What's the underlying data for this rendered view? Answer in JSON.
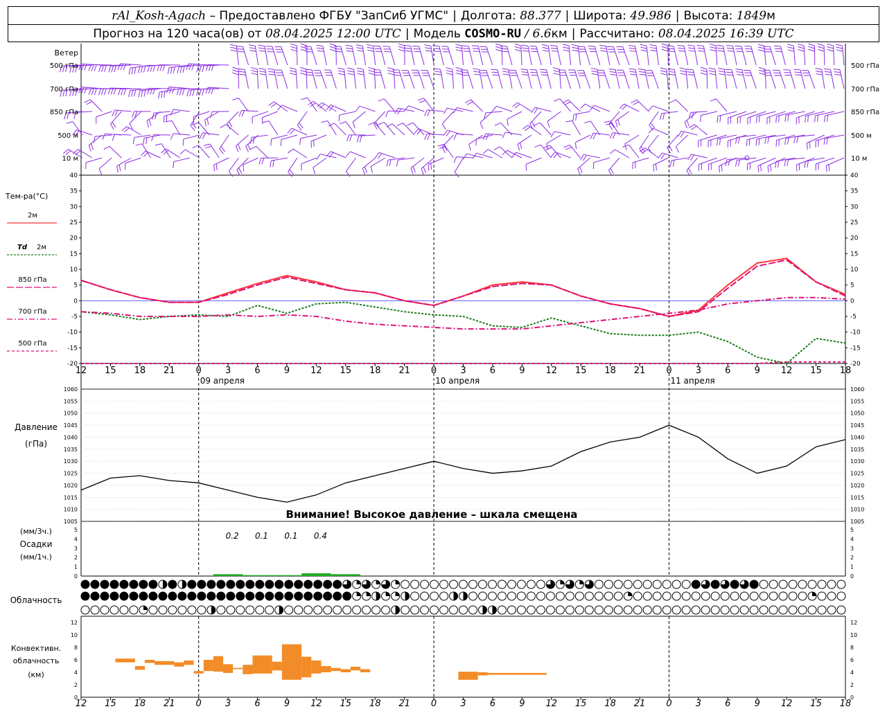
{
  "header": {
    "station": "rAl_Kosh-Agach",
    "provided_by": "– Предоставлено ФГБУ \"ЗапСиб УГМС\"",
    "lon_label": "Долгота:",
    "lon_value": "88.377",
    "lat_label": "Широта:",
    "lat_value": "49.986",
    "alt_label": "Высота:",
    "alt_value": "1849",
    "alt_unit": "м",
    "forecast_prefix": "Прогноз на 120 часа(ов) от",
    "forecast_time": "08.04.2025 12:00 UTC",
    "model_label": "Модель",
    "model_name": "COSMO-RU",
    "model_res": "/ 6.6",
    "model_res_unit": "км",
    "computed_label": "Рассчитано:",
    "computed_time": "08.04.2025 16:39 UTC"
  },
  "wind": {
    "title": "Ветер",
    "levels": [
      "500 гПа",
      "700 гПа",
      "850 гПа",
      "500  м",
      "10  м"
    ]
  },
  "temperature": {
    "title": "Тем-ра(°C)",
    "legend": [
      {
        "label": "2м",
        "italic": "",
        "color": "#ff3333",
        "dash": ""
      },
      {
        "label": "2м",
        "italic": "Td",
        "color": "#1a7a1a",
        "dash": "3,2"
      },
      {
        "label": "850 гПа",
        "italic": "",
        "color": "#dd1177",
        "dash": "10,3"
      },
      {
        "label": "700 гПа",
        "italic": "",
        "color": "#dd1177",
        "dash": "8,3,2,3"
      },
      {
        "label": "500 гПа",
        "italic": "",
        "color": "#dd1177",
        "dash": "4,3"
      }
    ],
    "axis": [
      40,
      35,
      30,
      25,
      20,
      15,
      10,
      5,
      0,
      -5,
      -10,
      -15,
      -20
    ],
    "x_hours": [
      "12",
      "15",
      "18",
      "21",
      "0",
      "3",
      "6",
      "9",
      "12",
      "15",
      "18",
      "21",
      "0",
      "3",
      "6",
      "9",
      "12",
      "15",
      "18",
      "21",
      "0",
      "3",
      "6",
      "9",
      "12",
      "15",
      "18"
    ],
    "days": [
      "09 апреля",
      "10 апреля",
      "11 апреля"
    ]
  },
  "pressure": {
    "title": "Давление",
    "unit": "(гПа)",
    "axis": [
      1060,
      1055,
      1050,
      1045,
      1040,
      1035,
      1030,
      1025,
      1020,
      1015,
      1010,
      1005
    ],
    "warning": "Внимание! Высокое давление – шкала смещена"
  },
  "precip": {
    "unit_top": "(мм/3ч.)",
    "title": "Осадки",
    "unit_bottom": "(мм/1ч.)",
    "axis": [
      5,
      4,
      3,
      2,
      1,
      0
    ],
    "totals": [
      "0.2",
      "0.1",
      "0.1",
      "0.4"
    ]
  },
  "cloud": {
    "title": "Облачность"
  },
  "convective": {
    "title_l1": "Конвективн.",
    "title_l2": "облачность",
    "title_l3": "(км)",
    "axis": [
      12,
      10,
      8,
      6,
      4,
      2,
      0
    ]
  },
  "colors": {
    "wind_barb": "#8a2be2",
    "t2m": "#ff3333",
    "td2m": "#1a7a1a",
    "t_levels": "#dd1177",
    "precip": "#22aa22",
    "convective": "#f28c28",
    "zero_line": "#4444ff"
  },
  "chart_data": [
    {
      "type": "line",
      "title": "Тем-ра(°C)",
      "x": [
        0,
        3,
        6,
        9,
        12,
        15,
        18,
        21,
        24,
        27,
        30,
        33,
        36,
        39,
        42,
        45,
        48,
        51,
        54,
        57,
        60,
        63,
        66,
        69,
        72,
        75,
        78
      ],
      "ylim": [
        -20,
        40
      ],
      "series": [
        {
          "name": "2м",
          "values": [
            6.5,
            3.5,
            1,
            -0.5,
            -0.5,
            2.5,
            5.5,
            8,
            6,
            3.5,
            2.5,
            0,
            -1.5,
            1.5,
            5,
            6,
            5,
            1.5,
            -1,
            -2.5,
            -5,
            -3,
            5,
            12,
            13.5,
            6,
            2
          ]
        },
        {
          "name": "Td 2м",
          "values": [
            -3.5,
            -4.5,
            -6,
            -5,
            -4.5,
            -5,
            -1.5,
            -4,
            -1,
            -0.5,
            -2,
            -3.5,
            -4.5,
            -5,
            -8,
            -8.5,
            -5.5,
            -8,
            -10.5,
            -11,
            -11,
            -10,
            -13,
            -18,
            -20,
            -12,
            -13.5
          ]
        },
        {
          "name": "850 гПа",
          "values": [
            6.5,
            3.5,
            1,
            -0.5,
            -0.5,
            2,
            5,
            7.5,
            5.5,
            3.5,
            2.5,
            0,
            -1.5,
            1.5,
            4.5,
            5.5,
            5,
            1.5,
            -1,
            -2.5,
            -5,
            -3.5,
            4,
            11,
            13,
            6,
            1.5
          ]
        },
        {
          "name": "700 гПа",
          "values": [
            -3.5,
            -4,
            -5,
            -5,
            -5,
            -4.5,
            -5,
            -4.5,
            -5,
            -6.5,
            -7.5,
            -8,
            -8.5,
            -9,
            -9,
            -9,
            -8,
            -7,
            -6,
            -5,
            -4,
            -3,
            -1,
            0,
            1,
            1,
            0.5
          ]
        },
        {
          "name": "500 гПа",
          "values": [
            -20,
            -20,
            -20,
            -20,
            -20,
            -20,
            -20,
            -20,
            -20,
            -20,
            -20,
            -20,
            -20,
            -20,
            -20,
            -20,
            -20,
            -20,
            -20,
            -20,
            -20,
            -20,
            -20,
            -20,
            -19.5,
            -19.5,
            -19.5
          ]
        }
      ]
    },
    {
      "type": "line",
      "title": "Давление",
      "x": [
        0,
        3,
        6,
        9,
        12,
        15,
        18,
        21,
        24,
        27,
        30,
        33,
        36,
        39,
        42,
        45,
        48,
        51,
        54,
        57,
        60,
        63,
        66,
        69,
        72,
        75,
        78
      ],
      "ylim": [
        1005,
        1060
      ],
      "series": [
        {
          "name": "",
          "values": [
            1018,
            1023,
            1024,
            1022,
            1021,
            1018,
            1015,
            1013,
            1016,
            1021,
            1024,
            1027,
            1030,
            1027,
            1025,
            1026,
            1028,
            1034,
            1038,
            1040,
            1045,
            1040,
            1031,
            1025,
            1028,
            1036,
            1039
          ]
        }
      ]
    },
    {
      "type": "bar",
      "title": "Осадки",
      "ylim": [
        0,
        5
      ],
      "x": [
        15,
        18,
        21,
        24,
        27
      ],
      "values": [
        0.2,
        0.1,
        0.1,
        0.3,
        0.2
      ]
    },
    {
      "type": "bar",
      "title": "Конвективн. облачность",
      "ylim": [
        0,
        13
      ],
      "units": "км",
      "segments": [
        {
          "x0": 3.5,
          "x1": 5.5,
          "bottom": 5.6,
          "top": 6.2
        },
        {
          "x0": 5.5,
          "x1": 6.5,
          "bottom": 4.4,
          "top": 5.0
        },
        {
          "x0": 6.5,
          "x1": 7.5,
          "bottom": 5.5,
          "top": 6.0
        },
        {
          "x0": 7.5,
          "x1": 9.5,
          "bottom": 5.2,
          "top": 5.8
        },
        {
          "x0": 9.5,
          "x1": 10.5,
          "bottom": 4.9,
          "top": 5.6
        },
        {
          "x0": 10.5,
          "x1": 11.5,
          "bottom": 5.2,
          "top": 5.9
        },
        {
          "x0": 11.5,
          "x1": 12.5,
          "bottom": 3.8,
          "top": 4.2
        },
        {
          "x0": 12.5,
          "x1": 13.5,
          "bottom": 4.2,
          "top": 6.0
        },
        {
          "x0": 13.5,
          "x1": 14.5,
          "bottom": 4.1,
          "top": 6.6
        },
        {
          "x0": 14.5,
          "x1": 15.5,
          "bottom": 3.9,
          "top": 5.3
        },
        {
          "x0": 15.5,
          "x1": 16.5,
          "bottom": 4.5,
          "top": 4.7
        },
        {
          "x0": 16.5,
          "x1": 17.5,
          "bottom": 3.7,
          "top": 5.2
        },
        {
          "x0": 17.5,
          "x1": 19.5,
          "bottom": 3.8,
          "top": 6.7
        },
        {
          "x0": 19.5,
          "x1": 20.5,
          "bottom": 4.3,
          "top": 5.7
        },
        {
          "x0": 20.5,
          "x1": 22.5,
          "bottom": 2.8,
          "top": 8.5
        },
        {
          "x0": 22.5,
          "x1": 23.5,
          "bottom": 3.2,
          "top": 6.5
        },
        {
          "x0": 23.5,
          "x1": 24.5,
          "bottom": 3.8,
          "top": 5.9
        },
        {
          "x0": 24.5,
          "x1": 25.5,
          "bottom": 4.0,
          "top": 5.0
        },
        {
          "x0": 25.5,
          "x1": 26.5,
          "bottom": 4.2,
          "top": 4.7
        },
        {
          "x0": 26.5,
          "x1": 27.5,
          "bottom": 4.0,
          "top": 4.5
        },
        {
          "x0": 27.5,
          "x1": 28.5,
          "bottom": 4.3,
          "top": 4.9
        },
        {
          "x0": 28.5,
          "x1": 29.5,
          "bottom": 4.0,
          "top": 4.5
        },
        {
          "x0": 38.5,
          "x1": 40.5,
          "bottom": 2.8,
          "top": 4.1
        },
        {
          "x0": 40.5,
          "x1": 41.5,
          "bottom": 3.5,
          "top": 4.0
        },
        {
          "x0": 41.5,
          "x1": 47.5,
          "bottom": 3.6,
          "top": 3.9
        }
      ]
    }
  ]
}
